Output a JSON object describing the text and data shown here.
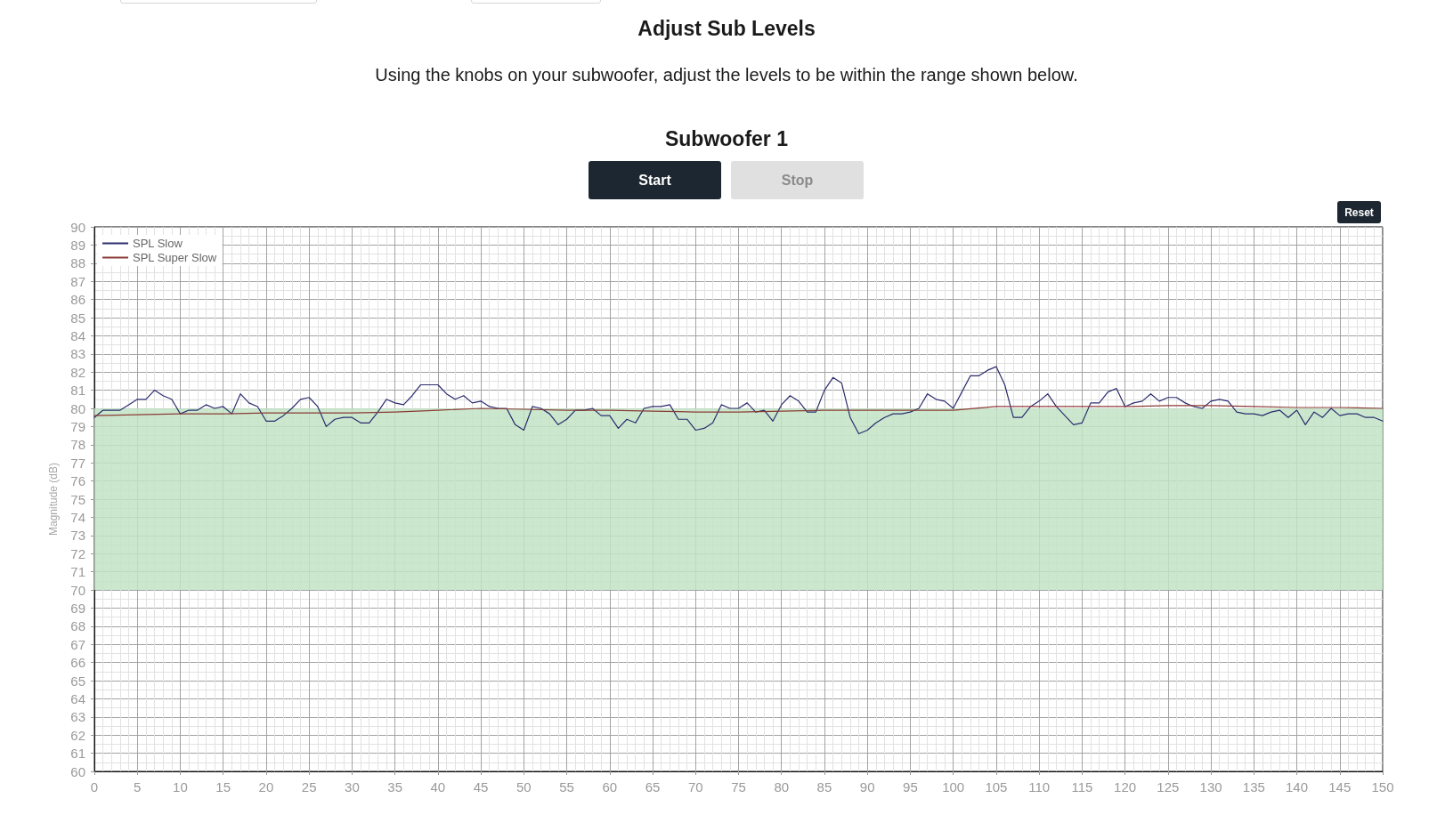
{
  "chart_data": {
    "type": "line",
    "title": "Adjust Sub Levels",
    "subtitle": "Using the knobs on your subwoofer, adjust the levels to be within the range shown below.",
    "annotations": [
      "Subwoofer 1",
      "Start",
      "Stop",
      "Reset"
    ],
    "ylabel": "Magnitude (dB)",
    "x": [
      0,
      1,
      2,
      3,
      4,
      5,
      6,
      7,
      8,
      9,
      10,
      11,
      12,
      13,
      14,
      15,
      16,
      17,
      18,
      19,
      20,
      21,
      22,
      23,
      24,
      25,
      26,
      27,
      28,
      29,
      30,
      31,
      32,
      33,
      34,
      35,
      36,
      37,
      38,
      39,
      40,
      41,
      42,
      43,
      44,
      45,
      46,
      47,
      48,
      49,
      50,
      51,
      52,
      53,
      54,
      55,
      56,
      57,
      58,
      59,
      60,
      61,
      62,
      63,
      64,
      65,
      66,
      67,
      68,
      69,
      70,
      71,
      72,
      73,
      74,
      75,
      76,
      77,
      78,
      79,
      80,
      81,
      82,
      83,
      84,
      85,
      86,
      87,
      88,
      89,
      90,
      91,
      92,
      93,
      94,
      95,
      96,
      97,
      98,
      99,
      100,
      101,
      102,
      103,
      104,
      105,
      106,
      107,
      108,
      109,
      110,
      111,
      112,
      113,
      114,
      115,
      116,
      117,
      118,
      119,
      120,
      121,
      122,
      123,
      124,
      125,
      126,
      127,
      128,
      129,
      130,
      131,
      132,
      133,
      134,
      135,
      136,
      137,
      138,
      139,
      140,
      141,
      142,
      143,
      144,
      145,
      146,
      147,
      148,
      149,
      150
    ],
    "series": [
      {
        "name": "SPL Slow",
        "color": "#2b2c6e",
        "values": [
          79.5,
          79.9,
          79.9,
          79.9,
          80.2,
          80.5,
          80.5,
          81.0,
          80.7,
          80.5,
          79.7,
          79.9,
          79.9,
          80.2,
          80.0,
          80.1,
          79.7,
          80.8,
          80.3,
          80.1,
          79.3,
          79.3,
          79.6,
          80.0,
          80.5,
          80.6,
          80.1,
          79.0,
          79.4,
          79.5,
          79.5,
          79.2,
          79.2,
          79.8,
          80.5,
          80.3,
          80.2,
          80.7,
          81.3,
          81.3,
          81.3,
          80.8,
          80.5,
          80.7,
          80.3,
          80.4,
          80.1,
          80.0,
          80.0,
          79.1,
          78.8,
          80.1,
          80.0,
          79.7,
          79.1,
          79.4,
          79.9,
          79.9,
          80.0,
          79.6,
          79.6,
          78.9,
          79.4,
          79.2,
          80.0,
          80.1,
          80.1,
          80.2,
          79.4,
          79.4,
          78.8,
          78.9,
          79.2,
          80.2,
          80.0,
          80.0,
          80.3,
          79.8,
          79.9,
          79.3,
          80.2,
          80.7,
          80.4,
          79.8,
          79.8,
          81.0,
          81.7,
          81.4,
          79.5,
          78.6,
          78.8,
          79.2,
          79.5,
          79.7,
          79.7,
          79.8,
          80.0,
          80.8,
          80.5,
          80.4,
          80.0,
          80.9,
          81.8,
          81.8,
          82.1,
          82.3,
          81.3,
          79.5,
          79.5,
          80.1,
          80.4,
          80.8,
          80.1,
          79.6,
          79.1,
          79.2,
          80.3,
          80.3,
          80.9,
          81.1,
          80.1,
          80.3,
          80.4,
          80.8,
          80.4,
          80.6,
          80.6,
          80.3,
          80.1,
          80.0,
          80.4,
          80.5,
          80.4,
          79.8,
          79.7,
          79.7,
          79.6,
          79.8,
          79.9,
          79.5,
          79.9,
          79.1,
          79.8,
          79.5,
          80.0,
          79.6,
          79.7,
          79.7,
          79.5,
          79.5,
          79.3
        ]
      },
      {
        "name": "SPL Super Slow",
        "color": "#8b3b36",
        "x": [
          0,
          5,
          10,
          15,
          20,
          25,
          30,
          35,
          40,
          45,
          50,
          55,
          60,
          65,
          70,
          75,
          80,
          85,
          90,
          95,
          100,
          105,
          110,
          115,
          120,
          125,
          130,
          135,
          140,
          145,
          150
        ],
        "values": [
          79.6,
          79.65,
          79.7,
          79.7,
          79.75,
          79.75,
          79.75,
          79.8,
          79.9,
          80.0,
          79.95,
          79.9,
          79.9,
          79.85,
          79.8,
          79.8,
          79.85,
          79.9,
          79.9,
          79.9,
          79.9,
          80.1,
          80.1,
          80.1,
          80.1,
          80.15,
          80.15,
          80.1,
          80.05,
          80.05,
          80.0
        ]
      }
    ],
    "xlim": [
      0,
      150
    ],
    "xticks": [
      0,
      5,
      10,
      15,
      20,
      25,
      30,
      35,
      40,
      45,
      50,
      55,
      60,
      65,
      70,
      75,
      80,
      85,
      90,
      95,
      100,
      105,
      110,
      115,
      120,
      125,
      130,
      135,
      140,
      145,
      150
    ],
    "ylim": [
      60,
      90
    ],
    "yticks": [
      60,
      61,
      62,
      63,
      64,
      65,
      66,
      67,
      68,
      69,
      70,
      71,
      72,
      73,
      74,
      75,
      76,
      77,
      78,
      79,
      80,
      81,
      82,
      83,
      84,
      85,
      86,
      87,
      88,
      89,
      90
    ],
    "bands": [
      {
        "axis": "y",
        "from": 70,
        "to": 80,
        "color": "#c2e4c5"
      }
    ],
    "grid": true,
    "legend": "top left"
  }
}
